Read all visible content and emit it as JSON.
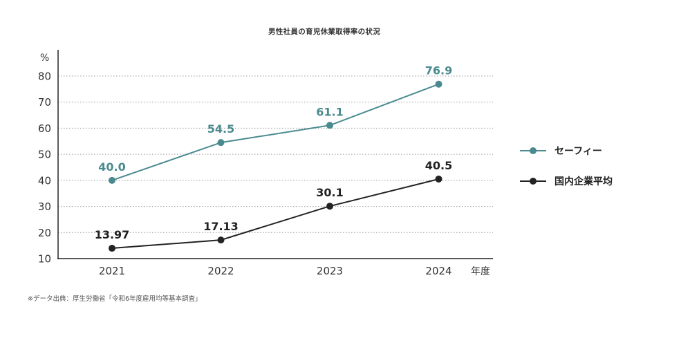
{
  "title": "男性社員の育児休業取得率の状況",
  "source_note": "※データ出典：厚生労働省「令和6年度雇用均等基本調査」",
  "chart_data": {
    "type": "line",
    "title": "男性社員の育児休業取得率の状況",
    "x": [
      "2021",
      "2022",
      "2023",
      "2024"
    ],
    "xlabel": "年度",
    "ylabel": "%",
    "ylim": [
      10,
      80
    ],
    "yticks": [
      10,
      20,
      30,
      40,
      50,
      60,
      70,
      80
    ],
    "grid": true,
    "legend_position": "right",
    "series": [
      {
        "name": "セーフィー",
        "values": [
          40.0,
          54.5,
          61.1,
          76.9
        ],
        "labels": [
          "40.0",
          "54.5",
          "61.1",
          "76.9"
        ],
        "color": "#4a8a8f"
      },
      {
        "name": "国内企業平均",
        "values": [
          13.97,
          17.13,
          30.1,
          40.5
        ],
        "labels": [
          "13.97",
          "17.13",
          "30.1",
          "40.5"
        ],
        "color": "#222222"
      }
    ]
  }
}
